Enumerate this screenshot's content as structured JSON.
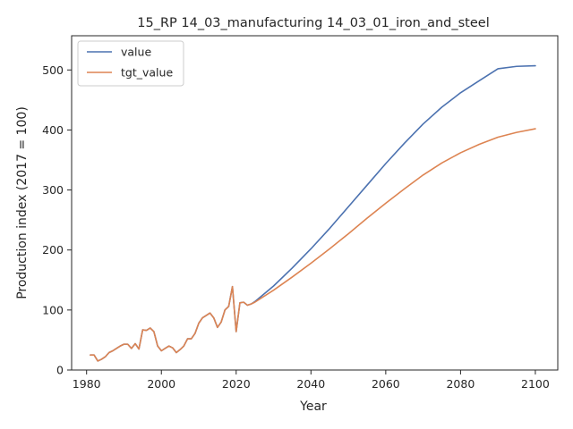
{
  "chart_data": {
    "type": "line",
    "title": "15_RP 14_03_manufacturing 14_03_01_iron_and_steel",
    "xlabel": "Year",
    "ylabel": "Production index (2017 = 100)",
    "xlim": [
      1976,
      2106
    ],
    "ylim": [
      0,
      557
    ],
    "xticks": [
      1980,
      2000,
      2020,
      2040,
      2060,
      2080,
      2100
    ],
    "yticks": [
      0,
      100,
      200,
      300,
      400,
      500
    ],
    "grid": false,
    "legend": "top-left",
    "series": [
      {
        "name": "value",
        "color": "#4c72b0",
        "x": [
          1981,
          1982,
          1983,
          1984,
          1985,
          1986,
          1987,
          1988,
          1989,
          1990,
          1991,
          1992,
          1993,
          1994,
          1995,
          1996,
          1997,
          1998,
          1999,
          2000,
          2001,
          2002,
          2003,
          2004,
          2005,
          2006,
          2007,
          2008,
          2009,
          2010,
          2011,
          2012,
          2013,
          2014,
          2015,
          2016,
          2017,
          2018,
          2019,
          2020,
          2021,
          2022,
          2023,
          2024,
          2025,
          2030,
          2035,
          2040,
          2045,
          2050,
          2055,
          2060,
          2065,
          2070,
          2075,
          2080,
          2085,
          2090,
          2095,
          2100
        ],
        "y": [
          25,
          25,
          15,
          18,
          22,
          29,
          32,
          36,
          40,
          43,
          43,
          36,
          44,
          35,
          67,
          66,
          70,
          64,
          40,
          32,
          36,
          40,
          37,
          29,
          34,
          40,
          52,
          52,
          61,
          78,
          87,
          91,
          95,
          87,
          71,
          80,
          100,
          106,
          139,
          64,
          112,
          113,
          108,
          110,
          114,
          140,
          170,
          202,
          236,
          272,
          308,
          344,
          378,
          410,
          438,
          462,
          482,
          502,
          506,
          507
        ]
      },
      {
        "name": "tgt_value",
        "color": "#dd8452",
        "x": [
          1981,
          1982,
          1983,
          1984,
          1985,
          1986,
          1987,
          1988,
          1989,
          1990,
          1991,
          1992,
          1993,
          1994,
          1995,
          1996,
          1997,
          1998,
          1999,
          2000,
          2001,
          2002,
          2003,
          2004,
          2005,
          2006,
          2007,
          2008,
          2009,
          2010,
          2011,
          2012,
          2013,
          2014,
          2015,
          2016,
          2017,
          2018,
          2019,
          2020,
          2021,
          2022,
          2023,
          2024,
          2025,
          2030,
          2035,
          2040,
          2045,
          2050,
          2055,
          2060,
          2065,
          2070,
          2075,
          2080,
          2085,
          2090,
          2095,
          2100
        ],
        "y": [
          25,
          25,
          15,
          18,
          22,
          29,
          32,
          36,
          40,
          43,
          43,
          36,
          44,
          35,
          67,
          66,
          70,
          64,
          40,
          32,
          36,
          40,
          37,
          29,
          34,
          40,
          52,
          52,
          61,
          78,
          87,
          91,
          95,
          87,
          71,
          80,
          100,
          106,
          139,
          64,
          112,
          113,
          108,
          110,
          113,
          133,
          155,
          178,
          202,
          227,
          253,
          278,
          302,
          325,
          345,
          362,
          376,
          388,
          396,
          402
        ]
      }
    ]
  }
}
